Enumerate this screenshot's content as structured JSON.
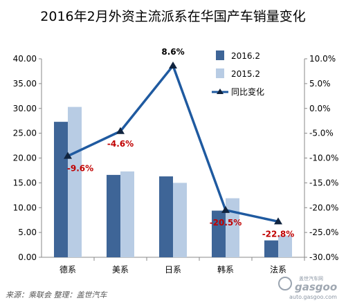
{
  "chart_data": {
    "type": "bar",
    "title": "2016年2月外资主流派系在华国产车销量变化",
    "categories": [
      "德系",
      "美系",
      "日系",
      "韩系",
      "法系"
    ],
    "series": [
      {
        "name": "2016.2",
        "type": "bar",
        "axis": "left",
        "color": "#3e6597",
        "values": [
          27.3,
          16.6,
          16.3,
          9.4,
          3.4
        ]
      },
      {
        "name": "2015.2",
        "type": "bar",
        "axis": "left",
        "color": "#b8cce4",
        "values": [
          30.3,
          17.3,
          15.0,
          11.9,
          4.4
        ]
      },
      {
        "name": "同比变化",
        "type": "line",
        "axis": "right",
        "color": "#1f5aa0",
        "values": [
          -9.6,
          -4.6,
          8.6,
          -20.5,
          -22.8
        ],
        "data_labels": [
          "-9.6%",
          "-4.6%",
          "8.6%",
          "-20.5%",
          "-22.8%"
        ]
      }
    ],
    "left_axis": {
      "ylim": [
        0,
        40
      ],
      "ticks": [
        "0.00",
        "5.00",
        "10.00",
        "15.00",
        "20.00",
        "25.00",
        "30.00",
        "35.00",
        "40.00"
      ]
    },
    "right_axis": {
      "ylim": [
        -30,
        10
      ],
      "ticks": [
        "-30.0%",
        "-25.0%",
        "-20.0%",
        "-15.0%",
        "-10.0%",
        "-5.0%",
        "0.0%",
        "5.0%",
        "10.0%"
      ]
    },
    "grid": false,
    "legend_position": "top-right",
    "label_colors": {
      "negative": "#c00000",
      "positive": "#000000"
    }
  },
  "footer": {
    "source": "来源：乘联会 整理：盖世汽车"
  },
  "watermark": {
    "text1": "盖世汽车网",
    "text2": "gasgoo",
    "text3": "auto.gasgoo.com"
  }
}
